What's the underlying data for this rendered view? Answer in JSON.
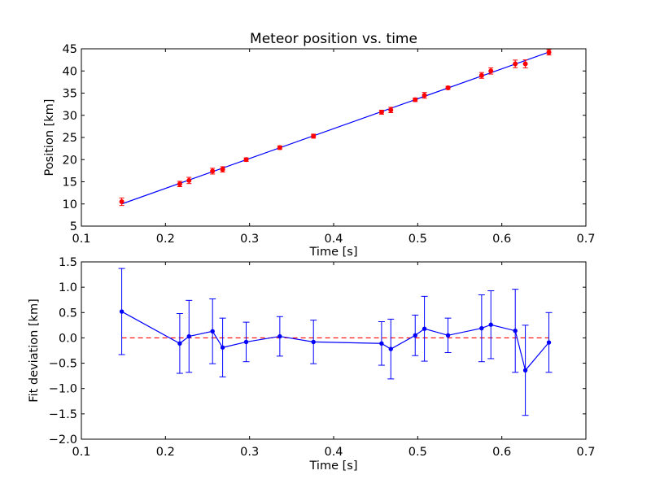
{
  "chart_data": [
    {
      "type": "scatter",
      "title": "Meteor position vs. time",
      "xlabel": "Time [s]",
      "ylabel": "Position [km]",
      "xlim": [
        0.1,
        0.7
      ],
      "ylim": [
        5,
        45
      ],
      "xticks": [
        "0.1",
        "0.2",
        "0.3",
        "0.4",
        "0.5",
        "0.6",
        "0.7"
      ],
      "yticks": [
        "5",
        "10",
        "15",
        "20",
        "25",
        "30",
        "35",
        "40",
        "45"
      ],
      "grid": false,
      "colors": {
        "points": "#ff0000",
        "errorbars": "#ff0000",
        "fit_line": "#0000ff"
      },
      "series": [
        {
          "x": [
            0.148,
            0.217,
            0.228,
            0.256,
            0.268,
            0.296,
            0.336,
            0.376,
            0.457,
            0.468,
            0.497,
            0.508,
            0.536,
            0.576,
            0.587,
            0.616,
            0.628,
            0.656
          ],
          "y": [
            10.5,
            14.5,
            15.3,
            17.4,
            17.8,
            20.0,
            22.7,
            25.3,
            30.7,
            31.2,
            33.5,
            34.5,
            36.2,
            39.0,
            40.0,
            41.6,
            41.6,
            44.2
          ],
          "yerr": [
            0.85,
            0.6,
            0.7,
            0.65,
            0.6,
            0.4,
            0.4,
            0.45,
            0.45,
            0.6,
            0.4,
            0.65,
            0.35,
            0.65,
            0.7,
            0.85,
            0.9,
            0.6
          ]
        }
      ],
      "fit_line": {
        "x": [
          0.148,
          0.656
        ],
        "y": [
          10.0,
          44.25
        ]
      }
    },
    {
      "type": "line",
      "title": "",
      "xlabel": "Time [s]",
      "ylabel": "Fit deviation [km]",
      "xlim": [
        0.1,
        0.7
      ],
      "ylim": [
        -2.0,
        1.5
      ],
      "xticks": [
        "0.1",
        "0.2",
        "0.3",
        "0.4",
        "0.5",
        "0.6",
        "0.7"
      ],
      "yticks": [
        "−2.0",
        "−1.5",
        "−1.0",
        "−0.5",
        "0.0",
        "0.5",
        "1.0",
        "1.5"
      ],
      "grid": false,
      "colors": {
        "series": "#0000ff",
        "zero_line": "#ff0000"
      },
      "series": [
        {
          "x": [
            0.148,
            0.217,
            0.228,
            0.256,
            0.268,
            0.296,
            0.336,
            0.376,
            0.457,
            0.468,
            0.497,
            0.508,
            0.536,
            0.576,
            0.587,
            0.616,
            0.628,
            0.656
          ],
          "y": [
            0.52,
            -0.11,
            0.03,
            0.13,
            -0.19,
            -0.08,
            0.03,
            -0.08,
            -0.11,
            -0.22,
            0.05,
            0.18,
            0.05,
            0.19,
            0.26,
            0.14,
            -0.64,
            -0.09
          ],
          "yerr": [
            0.85,
            0.59,
            0.71,
            0.64,
            0.58,
            0.39,
            0.39,
            0.43,
            0.43,
            0.59,
            0.4,
            0.64,
            0.34,
            0.66,
            0.67,
            0.82,
            0.89,
            0.59
          ]
        }
      ],
      "zero_line": {
        "y": 0.0,
        "x": [
          0.148,
          0.656
        ],
        "style": "dashed"
      }
    }
  ]
}
